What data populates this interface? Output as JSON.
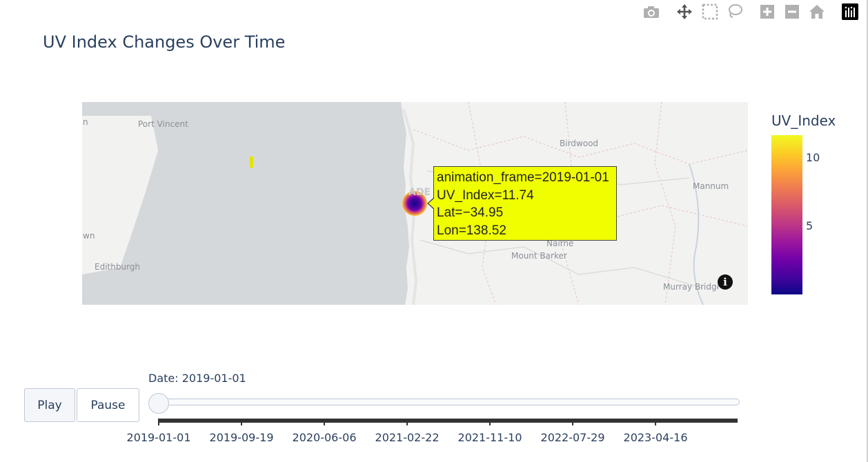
{
  "modebar": {
    "icons": [
      "camera-icon",
      "pan-icon",
      "box-select-icon",
      "lasso-icon",
      "zoom-in-icon",
      "zoom-out-icon",
      "home-icon",
      "plotly-logo-icon"
    ]
  },
  "chart_data": {
    "type": "scatter_mapbox",
    "title": "UV Index Changes Over Time",
    "colorbar_title": "UV_Index",
    "colorbar_ticks": [
      "10",
      "5"
    ],
    "colorscale": [
      "#0d0887",
      "#46039f",
      "#7201a8",
      "#9c179e",
      "#bd3786",
      "#d8576b",
      "#ed7953",
      "#fb9f3a",
      "#fdca26",
      "#f0f921"
    ],
    "points": [
      {
        "animation_frame": "2019-01-01",
        "UV_Index": 11.74,
        "Lat": -34.95,
        "Lon": 138.52
      }
    ],
    "map_labels": [
      "n",
      "Port Vincent",
      "Birdwood",
      "ADE",
      "Mannum",
      "wn",
      "Nairne",
      "Mount Barker",
      "Edithburgh",
      "Murray Bridge"
    ]
  },
  "tooltip": {
    "line1": "animation_frame=2019-01-01",
    "line2": "UV_Index=11.74",
    "line3": "Lat=−34.95",
    "line4": "Lon=138.52"
  },
  "slider": {
    "current_label": "Date: 2019-01-01",
    "value": "2019-01-01",
    "tick_labels": [
      "2019-01-01",
      "2019-09-19",
      "2020-06-06",
      "2021-02-22",
      "2021-11-10",
      "2022-07-29",
      "2023-04-16"
    ]
  },
  "buttons": {
    "play": "Play",
    "pause": "Pause"
  },
  "info_icon": "i"
}
